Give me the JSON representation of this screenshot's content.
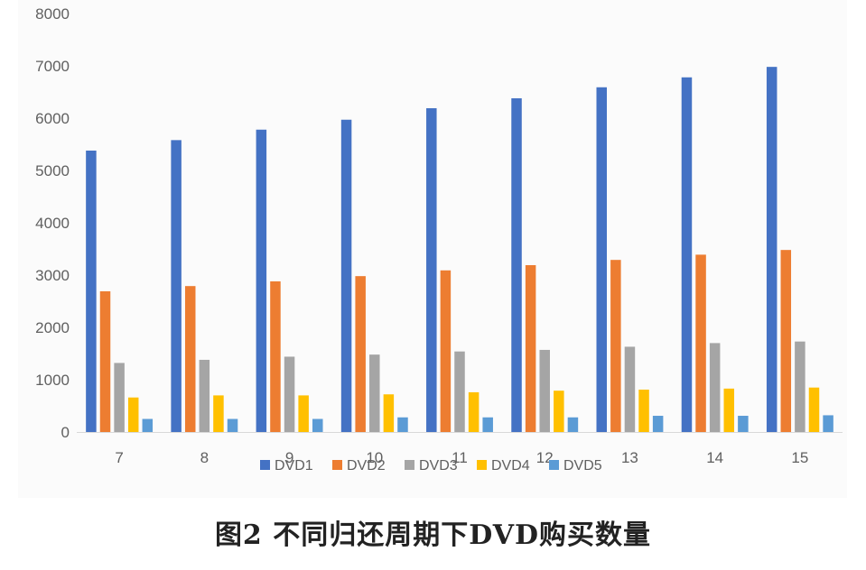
{
  "chart_data": {
    "type": "bar",
    "title": "",
    "xlabel": "",
    "ylabel": "",
    "categories": [
      "7",
      "8",
      "9",
      "10",
      "11",
      "12",
      "13",
      "14",
      "15"
    ],
    "ylim": [
      0,
      8000
    ],
    "yticks": [
      0,
      1000,
      2000,
      3000,
      4000,
      5000,
      6000,
      7000,
      8000
    ],
    "grid": false,
    "legend_position": "bottom",
    "series": [
      {
        "name": "DVD1",
        "color": "#4472c4",
        "values": [
          5380,
          5580,
          5780,
          5970,
          6190,
          6380,
          6590,
          6780,
          6980
        ]
      },
      {
        "name": "DVD2",
        "color": "#ed7d31",
        "values": [
          2690,
          2790,
          2880,
          2980,
          3090,
          3190,
          3290,
          3390,
          3480
        ]
      },
      {
        "name": "DVD3",
        "color": "#a5a5a5",
        "values": [
          1320,
          1380,
          1440,
          1480,
          1540,
          1570,
          1630,
          1700,
          1730
        ]
      },
      {
        "name": "DVD4",
        "color": "#ffc000",
        "values": [
          660,
          700,
          700,
          720,
          760,
          790,
          810,
          830,
          850
        ]
      },
      {
        "name": "DVD5",
        "color": "#5b9bd5",
        "values": [
          250,
          250,
          250,
          280,
          280,
          280,
          310,
          310,
          320
        ]
      }
    ]
  },
  "caption": {
    "text": "图2   不同归还周期下DVD购买数量"
  }
}
